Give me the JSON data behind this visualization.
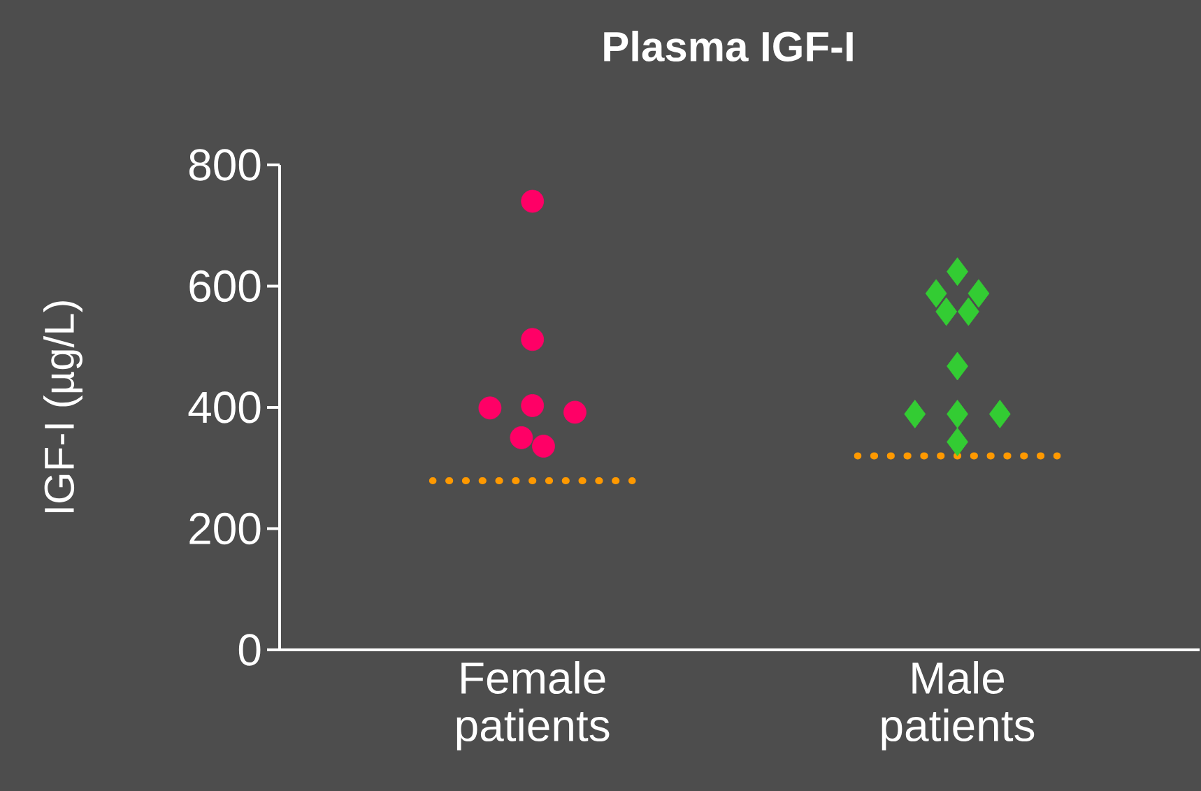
{
  "chart_data": {
    "type": "scatter",
    "title": "Plasma IGF-I",
    "ylabel": "IGF-I (µg/L)",
    "categories": [
      "Female patients",
      "Male patients"
    ],
    "ylim": [
      0,
      800
    ],
    "yticks": [
      0,
      200,
      400,
      600,
      800
    ],
    "grid": false,
    "series": [
      {
        "marker": "circle",
        "color": "#ff0066",
        "x": [
          "Female patients",
          "Female patients",
          "Female patients",
          "Female patients",
          "Female patients",
          "Female patients",
          "Female patients"
        ],
        "values": [
          740,
          512,
          399,
          403,
          392,
          350,
          336
        ]
      },
      {
        "marker": "diamond",
        "color": "#33cc33",
        "x": [
          "Male patients",
          "Male patients",
          "Male patients",
          "Male patients",
          "Male patients",
          "Male patients",
          "Male patients",
          "Male patients",
          "Male patients",
          "Male patients"
        ],
        "values": [
          624,
          588,
          588,
          558,
          558,
          468,
          389,
          389,
          389,
          343
        ]
      }
    ],
    "ref_lines": [
      {
        "axis": "y",
        "value": 279,
        "color": "#ff9900",
        "line_style": "dotted"
      },
      {
        "axis": "y",
        "value": 320,
        "color": "#ff9900",
        "line_style": "dotted"
      }
    ]
  }
}
